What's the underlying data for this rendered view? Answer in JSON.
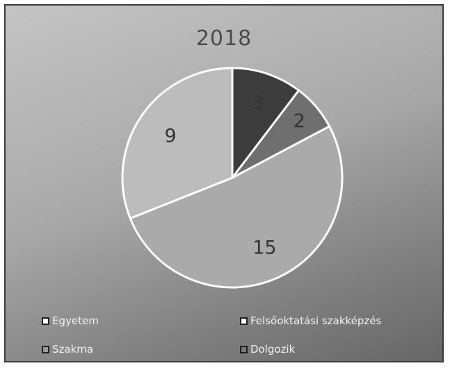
{
  "chart_data": {
    "type": "pie",
    "title": "2018",
    "categories": [
      "Egyetem",
      "Felsőoktatási szakképzés",
      "Szakma",
      "Dolgozik"
    ],
    "values": [
      3,
      2,
      15,
      9
    ],
    "data_labels": [
      "3",
      "2",
      "15",
      "9"
    ],
    "colors": [
      "#3c3c3c",
      "#6f6f6f",
      "#aaaaaa",
      "#bcbcbc"
    ],
    "legend_swatch_colors": [
      "#ffffff",
      "#ffffff",
      "#9a9a9a",
      "#7a7a7a"
    ],
    "legend_position": "bottom"
  }
}
